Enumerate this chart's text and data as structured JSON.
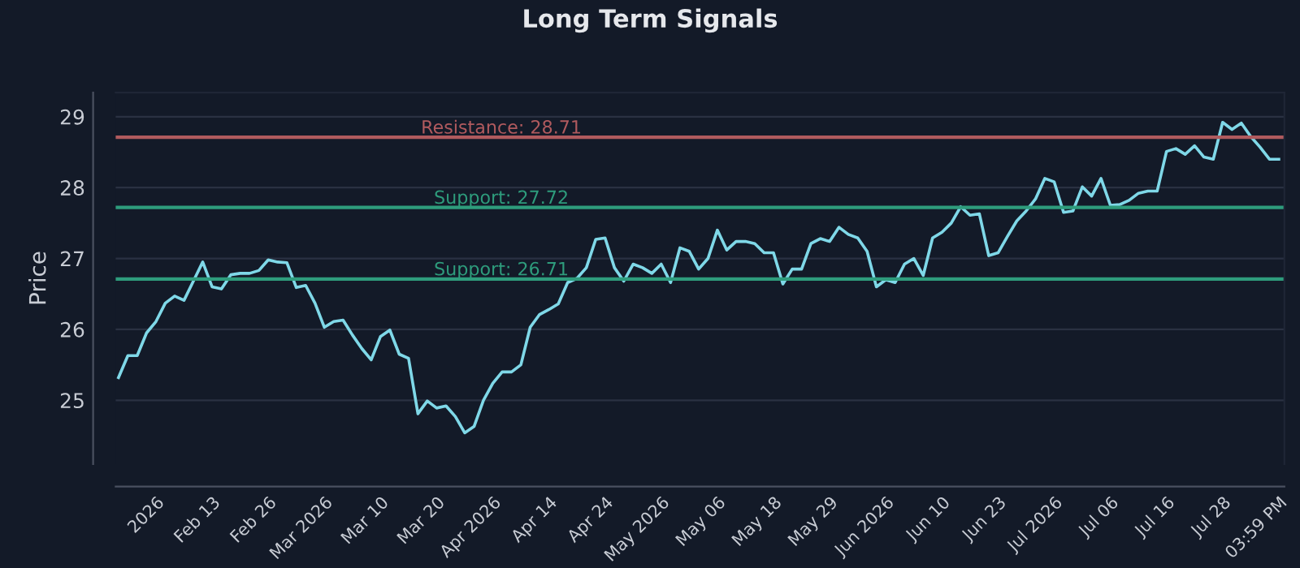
{
  "chart_data": {
    "type": "line",
    "title": "Long Term Signals",
    "ylabel": "Price",
    "categories": [
      null,
      null,
      null,
      null,
      "2026",
      null,
      null,
      null,
      null,
      null,
      "Feb 13",
      null,
      null,
      null,
      null,
      null,
      "Feb 26",
      null,
      null,
      null,
      null,
      null,
      "Mar 2026",
      null,
      null,
      null,
      null,
      null,
      "Mar 10",
      null,
      null,
      null,
      null,
      null,
      "Mar 20",
      null,
      null,
      null,
      null,
      null,
      "Apr 2026",
      null,
      null,
      null,
      null,
      null,
      "Apr 14",
      null,
      null,
      null,
      null,
      null,
      "Apr 24",
      null,
      null,
      null,
      null,
      null,
      "May 2026",
      null,
      null,
      null,
      null,
      null,
      "May 06",
      null,
      null,
      null,
      null,
      null,
      "May 18",
      null,
      null,
      null,
      null,
      null,
      "May 29",
      null,
      null,
      null,
      null,
      null,
      "Jun 2026",
      null,
      null,
      null,
      null,
      null,
      "Jun 10",
      null,
      null,
      null,
      null,
      null,
      "Jun 23",
      null,
      null,
      null,
      null,
      null,
      "Jul 2026",
      null,
      null,
      null,
      null,
      null,
      "Jul 06",
      null,
      null,
      null,
      null,
      null,
      "Jul 16",
      null,
      null,
      null,
      null,
      null,
      "Jul 28",
      null,
      null,
      null,
      null,
      null,
      "03:59 PM"
    ],
    "series": [
      {
        "color": "#7fd8e8",
        "values": [
          25.32,
          25.63,
          25.63,
          25.95,
          26.11,
          26.37,
          26.47,
          26.41,
          26.68,
          26.95,
          26.6,
          26.57,
          26.77,
          26.79,
          26.79,
          26.83,
          26.98,
          26.95,
          26.94,
          26.59,
          26.62,
          26.37,
          26.03,
          26.11,
          26.13,
          25.92,
          25.73,
          25.57,
          25.9,
          25.99,
          25.65,
          25.59,
          24.81,
          24.99,
          24.89,
          24.92,
          24.77,
          24.54,
          24.63,
          25.0,
          25.24,
          25.4,
          25.4,
          25.5,
          26.03,
          26.21,
          26.28,
          26.36,
          26.66,
          26.72,
          26.87,
          27.27,
          27.29,
          26.87,
          26.68,
          26.92,
          26.87,
          26.79,
          26.92,
          26.66,
          27.15,
          27.1,
          26.85,
          27.0,
          27.4,
          27.12,
          27.24,
          27.24,
          27.21,
          27.08,
          27.08,
          26.64,
          26.85,
          26.85,
          27.21,
          27.28,
          27.24,
          27.44,
          27.34,
          27.29,
          27.1,
          26.6,
          26.7,
          26.66,
          26.92,
          27.0,
          26.76,
          27.29,
          27.37,
          27.5,
          27.73,
          27.61,
          27.63,
          27.04,
          27.08,
          27.31,
          27.53,
          27.67,
          27.84,
          28.13,
          28.08,
          27.65,
          27.67,
          28.01,
          27.88,
          28.13,
          27.75,
          27.76,
          27.82,
          27.92,
          27.95,
          27.95,
          28.51,
          28.55,
          28.47,
          28.59,
          28.43,
          28.4,
          28.92,
          28.82,
          28.91,
          28.72,
          28.57,
          28.4,
          28.4
        ]
      }
    ],
    "ylim": [
      24.1,
      29.34
    ],
    "yticks": [
      25,
      26,
      27,
      28,
      29
    ],
    "grid": "y",
    "ref_lines": [
      {
        "axis": "y",
        "value": 28.71,
        "label": "Resistance: 28.71",
        "color": "#b05a5e"
      },
      {
        "axis": "y",
        "value": 27.72,
        "label": "Support: 27.72",
        "color": "#2e9c7c"
      },
      {
        "axis": "y",
        "value": 26.71,
        "label": "Support: 26.71",
        "color": "#2e9c7c"
      }
    ]
  }
}
